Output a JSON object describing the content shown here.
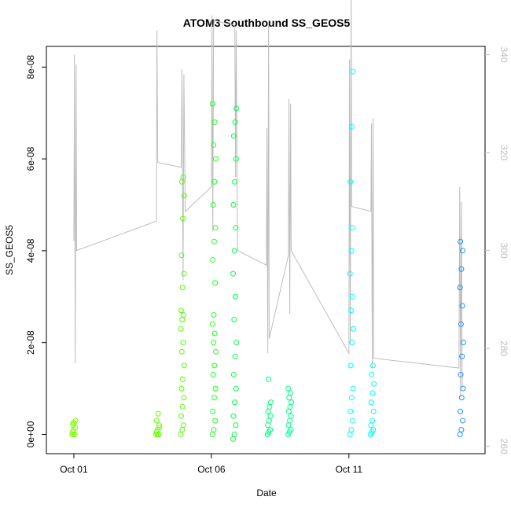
{
  "chart_data": {
    "type": "scatter",
    "title": "ATOM3 Southbound SS_GEOS5",
    "xlabel": "Date",
    "ylabel": "SS_GEOS5",
    "x_ticks": [
      {
        "day": 1,
        "label": "Oct 01"
      },
      {
        "day": 6,
        "label": "Oct 06"
      },
      {
        "day": 11,
        "label": "Oct 11"
      }
    ],
    "y_ticks": [
      {
        "value": 0,
        "label": "0e+00"
      },
      {
        "value": 2e-08,
        "label": "2e-08"
      },
      {
        "value": 4e-08,
        "label": "4e-08"
      },
      {
        "value": 6e-08,
        "label": "6e-08"
      },
      {
        "value": 8e-08,
        "label": "8e-08"
      }
    ],
    "right_ticks": [
      {
        "value": 260,
        "label": "260"
      },
      {
        "value": 280,
        "label": "280"
      },
      {
        "value": 300,
        "label": "300"
      },
      {
        "value": 320,
        "label": "320"
      },
      {
        "value": 340,
        "label": "340"
      }
    ],
    "xlim": [
      0.0,
      15.95
    ],
    "ylim": [
      -4.2e-09,
      8.45e-08
    ],
    "right_ylim": [
      258.5,
      341.7
    ],
    "grid": false,
    "colors": {
      "line": "#bdbdbd",
      "points_by_day": {
        "1": "#7fff00",
        "4": "#66ff00",
        "5": "#55ff00",
        "6": "#22ff22",
        "7": "#00ff44",
        "9": "#00ff7f",
        "10": "#00ff8c",
        "11": "#00ffff",
        "12": "#00fff0",
        "15": "#1e90ff"
      }
    },
    "series": [
      {
        "kind": "points",
        "day_groups": [
          {
            "day": 1,
            "x": 1.0,
            "values": [
              0,
              0,
              0,
              5e-10,
              1e-09,
              1.5e-09,
              2e-09,
              2.5e-09,
              3e-09,
              2.5e-09
            ]
          },
          {
            "day": 4,
            "x": 4.05,
            "values": [
              0,
              0,
              0,
              5e-10,
              1e-09,
              2e-09,
              3e-09,
              4.5e-09,
              1.5e-09
            ]
          },
          {
            "day": 5,
            "x": 4.95,
            "values": [
              0,
              1e-09,
              2e-09,
              4e-09,
              6e-09,
              8e-09,
              1e-08,
              1.2e-08,
              1.5e-08,
              1.8e-08,
              2e-08,
              2.3e-08,
              2.5e-08,
              2.6e-08,
              2.7e-08,
              3.2e-08,
              3.5e-08,
              3.9e-08,
              4.7e-08,
              5.2e-08,
              5.5e-08,
              5.6e-08
            ]
          },
          {
            "day": 6,
            "x": 6.1,
            "values": [
              0,
              1e-09,
              3e-09,
              5e-09,
              8e-09,
              1e-08,
              1.3e-08,
              1.5e-08,
              1.8e-08,
              2e-08,
              2.2e-08,
              2.4e-08,
              2.6e-08,
              3.3e-08,
              3.8e-08,
              4.2e-08,
              4.5e-08,
              5e-08,
              5.5e-08,
              6e-08,
              6.3e-08,
              6.8e-08,
              7.2e-08
            ]
          },
          {
            "day": 7,
            "x": 6.85,
            "values": [
              -1e-09,
              0,
              2e-09,
              4e-09,
              7e-09,
              1e-08,
              1.3e-08,
              1.7e-08,
              2e-08,
              2.5e-08,
              3e-08,
              3.5e-08,
              4e-08,
              4.5e-08,
              5e-08,
              5.5e-08,
              6e-08,
              6.5e-08,
              6.8e-08,
              7.1e-08
            ]
          },
          {
            "day": 9,
            "x": 8.1,
            "values": [
              0,
              5e-10,
              1e-09,
              2e-09,
              3e-09,
              4e-09,
              5e-09,
              6e-09,
              7e-09,
              1.2e-08
            ]
          },
          {
            "day": 10,
            "x": 8.85,
            "values": [
              0,
              5e-10,
              1e-09,
              2e-09,
              3e-09,
              4e-09,
              5e-09,
              6e-09,
              7e-09,
              8e-09,
              9e-09,
              1e-08
            ]
          },
          {
            "day": 11,
            "x": 11.1,
            "values": [
              0,
              1e-09,
              3e-09,
              5e-09,
              8e-09,
              1e-08,
              1.5e-08,
              2e-08,
              2.3e-08,
              2.7e-08,
              3e-08,
              3.5e-08,
              4e-08,
              4.5e-08,
              5.5e-08,
              6.7e-08,
              7.9e-08
            ]
          },
          {
            "day": 12,
            "x": 11.85,
            "values": [
              0,
              5e-10,
              1e-09,
              2e-09,
              3e-09,
              5e-09,
              7e-09,
              9e-09,
              1.1e-08,
              1.3e-08,
              1.5e-08
            ]
          },
          {
            "day": 15,
            "x": 15.1,
            "values": [
              0,
              1e-09,
              3e-09,
              5e-09,
              8e-09,
              1e-08,
              1.3e-08,
              1.7e-08,
              2e-08,
              2.4e-08,
              2.8e-08,
              3.2e-08,
              3.6e-08,
              4e-08,
              4.2e-08
            ]
          }
        ]
      },
      {
        "kind": "line",
        "note_axis": "right",
        "values": [
          {
            "x": 1.0,
            "y": 302
          },
          {
            "x": 1.02,
            "y": 340
          },
          {
            "x": 1.05,
            "y": 277
          },
          {
            "x": 1.08,
            "y": 338
          },
          {
            "x": 1.1,
            "y": 300
          },
          {
            "x": 4.0,
            "y": 306
          },
          {
            "x": 4.02,
            "y": 345
          },
          {
            "x": 4.05,
            "y": 318
          },
          {
            "x": 4.9,
            "y": 317
          },
          {
            "x": 4.93,
            "y": 337
          },
          {
            "x": 4.97,
            "y": 294
          },
          {
            "x": 5.0,
            "y": 336
          },
          {
            "x": 5.05,
            "y": 308
          },
          {
            "x": 6.0,
            "y": 313
          },
          {
            "x": 6.02,
            "y": 348
          },
          {
            "x": 6.05,
            "y": 304
          },
          {
            "x": 6.08,
            "y": 346
          },
          {
            "x": 6.1,
            "y": 347
          },
          {
            "x": 6.85,
            "y": 346
          },
          {
            "x": 6.88,
            "y": 315
          },
          {
            "x": 6.9,
            "y": 345
          },
          {
            "x": 6.95,
            "y": 300
          },
          {
            "x": 8.0,
            "y": 297
          },
          {
            "x": 8.02,
            "y": 325
          },
          {
            "x": 8.05,
            "y": 279
          },
          {
            "x": 8.08,
            "y": 347
          },
          {
            "x": 8.1,
            "y": 282
          },
          {
            "x": 8.8,
            "y": 299
          },
          {
            "x": 8.82,
            "y": 331
          },
          {
            "x": 8.85,
            "y": 287
          },
          {
            "x": 8.88,
            "y": 330
          },
          {
            "x": 8.9,
            "y": 300
          },
          {
            "x": 11.0,
            "y": 279
          },
          {
            "x": 11.02,
            "y": 339
          },
          {
            "x": 11.05,
            "y": 281
          },
          {
            "x": 11.08,
            "y": 354
          },
          {
            "x": 11.1,
            "y": 309
          },
          {
            "x": 11.8,
            "y": 308
          },
          {
            "x": 11.82,
            "y": 326
          },
          {
            "x": 11.85,
            "y": 276
          },
          {
            "x": 11.88,
            "y": 327
          },
          {
            "x": 11.9,
            "y": 278
          },
          {
            "x": 15.0,
            "y": 276
          },
          {
            "x": 15.03,
            "y": 313
          },
          {
            "x": 15.06,
            "y": 270
          },
          {
            "x": 15.09,
            "y": 310
          },
          {
            "x": 15.12,
            "y": 272
          }
        ]
      }
    ]
  }
}
